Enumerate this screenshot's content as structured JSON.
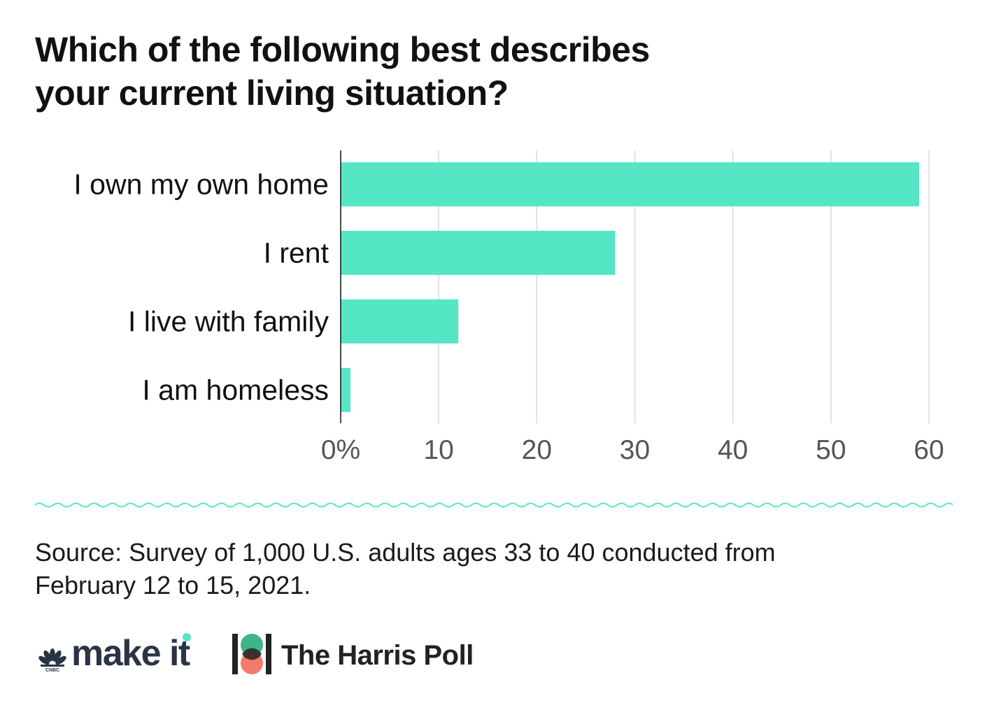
{
  "title_lines": [
    "Which of the following best describes",
    "your current living situation?"
  ],
  "source_lines": [
    "Source: Survey of 1,000 U.S. adults ages 33 to 40 conducted from",
    "February 12 to 15, 2021."
  ],
  "logos": {
    "makeit_text": "make it",
    "harris_text": "The Harris Poll"
  },
  "colors": {
    "bar": "#55E6C6",
    "grid": "#d9d9d9",
    "axis": "#111111",
    "tick_label": "#555555",
    "accent_wave": "#55E6C6",
    "harris_green": "#3fb38a",
    "harris_coral": "#f47b6b"
  },
  "chart_data": {
    "type": "bar",
    "orientation": "horizontal",
    "categories": [
      "I own my own home",
      "I rent",
      "I live with family",
      "I am homeless"
    ],
    "values": [
      59,
      28,
      12,
      1
    ],
    "xlim": [
      0,
      60
    ],
    "xticks": [
      0,
      10,
      20,
      30,
      40,
      50,
      60
    ],
    "xtick_labels": [
      "0%",
      "10",
      "20",
      "30",
      "40",
      "50",
      "60"
    ],
    "grid": true
  }
}
